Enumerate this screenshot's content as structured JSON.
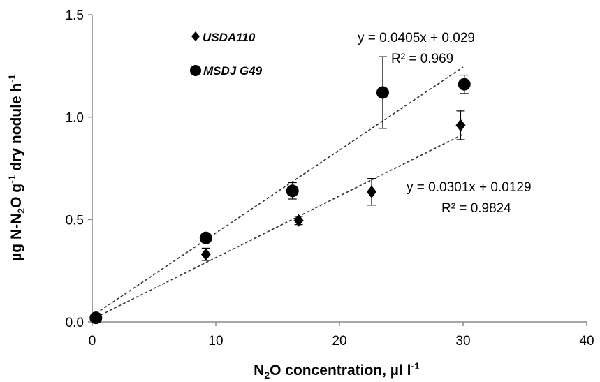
{
  "chart_data": {
    "type": "scatter",
    "xlabel": {
      "prefix": "N",
      "sub": "2",
      "main": "O concentration, µl l",
      "sup": "-1"
    },
    "ylabel": {
      "p1": "µg N-N",
      "sub": "2",
      "p2": "O g",
      "sup1": "-1",
      "p3": " dry nodule h",
      "sup2": "-1"
    },
    "xlim": [
      0,
      40
    ],
    "ylim": [
      0,
      1.5
    ],
    "x_ticks": [
      0,
      10,
      20,
      30,
      40
    ],
    "x_tick_labels": [
      "0",
      "10",
      "20",
      "30",
      "40"
    ],
    "y_ticks": [
      0,
      0.5,
      1.0,
      1.5
    ],
    "y_tick_labels": [
      "0.0",
      "0.5",
      "1.0",
      "1.5"
    ],
    "grid": false,
    "legend_position": "top-left",
    "series": [
      {
        "name": "USDA110",
        "marker": "diamond",
        "color": "#000000",
        "points": [
          {
            "x": 0.3,
            "y": 0.02,
            "err": 0.0
          },
          {
            "x": 9.2,
            "y": 0.33,
            "err": 0.03
          },
          {
            "x": 16.7,
            "y": 0.495,
            "err": 0.02
          },
          {
            "x": 22.6,
            "y": 0.635,
            "err": 0.065
          },
          {
            "x": 29.8,
            "y": 0.96,
            "err": 0.07
          }
        ],
        "trendline": {
          "slope": 0.0301,
          "intercept": 0.0129,
          "x_range": [
            0,
            30
          ]
        },
        "equation": "y = 0.0301x  + 0.0129",
        "r2": "R² = 0.9824"
      },
      {
        "name": "MSDJ G49",
        "marker": "circle",
        "color": "#000000",
        "points": [
          {
            "x": 0.3,
            "y": 0.02,
            "err": 0.0
          },
          {
            "x": 9.2,
            "y": 0.41,
            "err": 0.0
          },
          {
            "x": 16.2,
            "y": 0.64,
            "err": 0.04
          },
          {
            "x": 23.5,
            "y": 1.12,
            "err": 0.175
          },
          {
            "x": 30.1,
            "y": 1.16,
            "err": 0.045
          }
        ],
        "trendline": {
          "slope": 0.0405,
          "intercept": 0.029,
          "x_range": [
            0,
            30
          ]
        },
        "equation": "y = 0.0405x  + 0.029",
        "r2": "R² = 0.969"
      }
    ]
  }
}
